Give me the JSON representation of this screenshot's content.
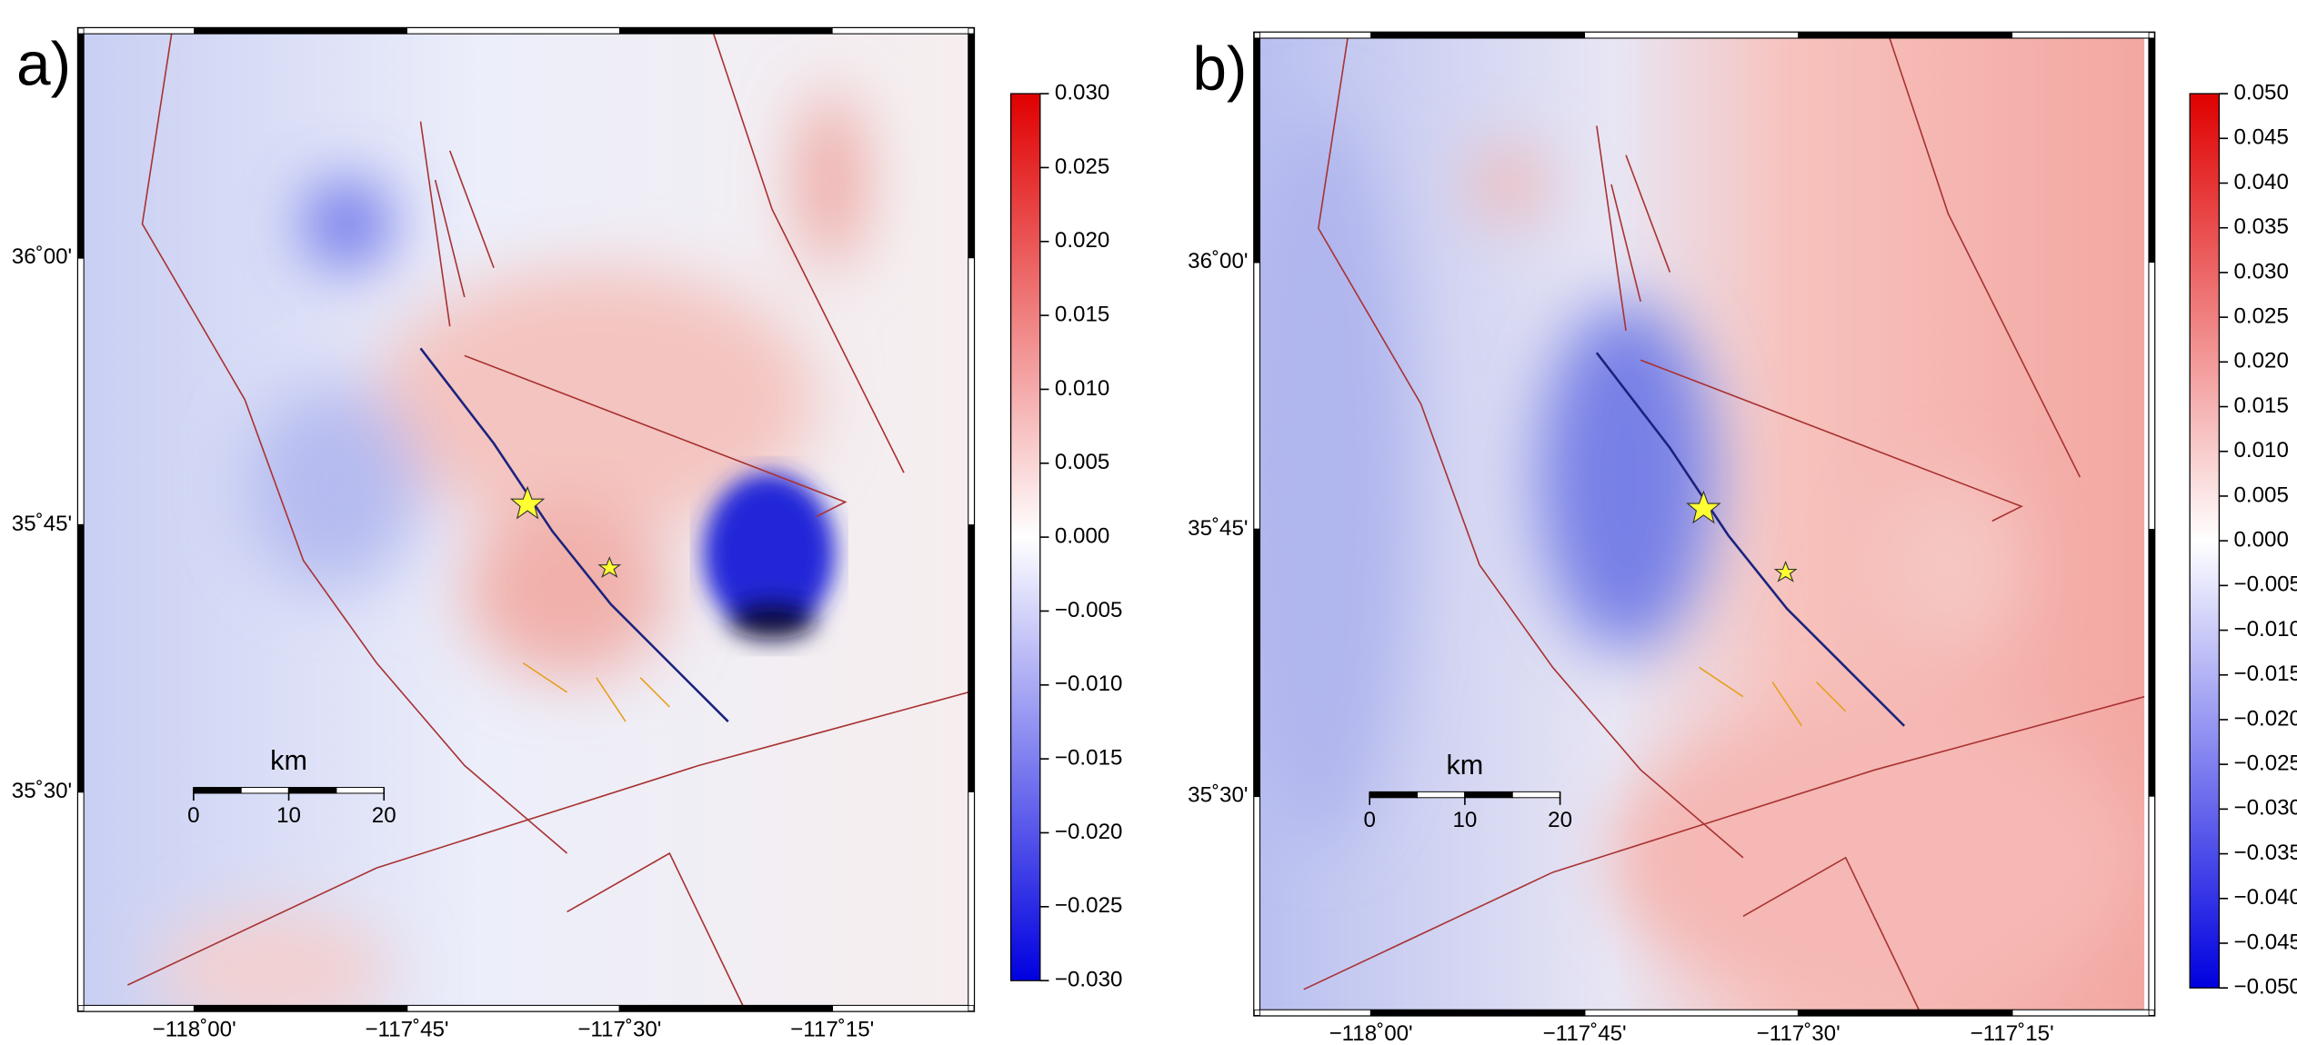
{
  "panels": [
    {
      "label": "a)",
      "lon_lim": [
        -118.13,
        -117.09
      ],
      "lat_lim": [
        35.3,
        36.21
      ],
      "lon_ticks": [
        {
          "value": -118,
          "label": "−118˚00'"
        },
        {
          "value": -117.75,
          "label": "−117˚45'"
        },
        {
          "value": -117.5,
          "label": "−117˚30'"
        },
        {
          "value": -117.25,
          "label": "−117˚15'"
        }
      ],
      "lat_ticks": [
        {
          "value": 36,
          "label": "36˚00'"
        },
        {
          "value": 35.75,
          "label": "35˚45'"
        },
        {
          "value": 35.5,
          "label": "35˚30'"
        }
      ],
      "colorbar": {
        "lim": [
          -0.03,
          0.03
        ],
        "ticks": [
          {
            "value": 0.03,
            "label": "0.030"
          },
          {
            "value": 0.025,
            "label": "0.025"
          },
          {
            "value": 0.02,
            "label": "0.020"
          },
          {
            "value": 0.015,
            "label": "0.015"
          },
          {
            "value": 0.01,
            "label": "0.010"
          },
          {
            "value": 0.005,
            "label": "0.005"
          },
          {
            "value": 0,
            "label": "0.000"
          },
          {
            "value": -0.005,
            "label": "−0.005"
          },
          {
            "value": -0.01,
            "label": "−0.010"
          },
          {
            "value": -0.015,
            "label": "−0.015"
          },
          {
            "value": -0.02,
            "label": "−0.020"
          },
          {
            "value": -0.025,
            "label": "−0.025"
          },
          {
            "value": -0.03,
            "label": "−0.030"
          }
        ]
      },
      "scalebar": {
        "title": "km",
        "ticks": [
          0,
          10,
          20
        ]
      }
    },
    {
      "label": "b)",
      "lon_lim": [
        -118.13,
        -117.09
      ],
      "lat_lim": [
        35.3,
        36.21
      ],
      "lon_ticks": [
        {
          "value": -118,
          "label": "−118˚00'"
        },
        {
          "value": -117.75,
          "label": "−117˚45'"
        },
        {
          "value": -117.5,
          "label": "−117˚30'"
        },
        {
          "value": -117.25,
          "label": "−117˚15'"
        }
      ],
      "lat_ticks": [
        {
          "value": 36,
          "label": "36˚00'"
        },
        {
          "value": 35.75,
          "label": "35˚45'"
        },
        {
          "value": 35.5,
          "label": "35˚30'"
        }
      ],
      "colorbar": {
        "lim": [
          -0.05,
          0.05
        ],
        "ticks": [
          {
            "value": 0.05,
            "label": "0.050"
          },
          {
            "value": 0.045,
            "label": "0.045"
          },
          {
            "value": 0.04,
            "label": "0.040"
          },
          {
            "value": 0.035,
            "label": "0.035"
          },
          {
            "value": 0.03,
            "label": "0.030"
          },
          {
            "value": 0.025,
            "label": "0.025"
          },
          {
            "value": 0.02,
            "label": "0.020"
          },
          {
            "value": 0.015,
            "label": "0.015"
          },
          {
            "value": 0.01,
            "label": "0.010"
          },
          {
            "value": 0.005,
            "label": "0.005"
          },
          {
            "value": 0,
            "label": "0.000"
          },
          {
            "value": -0.005,
            "label": "−0.005"
          },
          {
            "value": -0.01,
            "label": "−0.010"
          },
          {
            "value": -0.015,
            "label": "−0.015"
          },
          {
            "value": -0.02,
            "label": "−0.020"
          },
          {
            "value": -0.025,
            "label": "−0.025"
          },
          {
            "value": -0.03,
            "label": "−0.030"
          },
          {
            "value": -0.035,
            "label": "−0.035"
          },
          {
            "value": -0.04,
            "label": "−0.040"
          },
          {
            "value": -0.045,
            "label": "−0.045"
          },
          {
            "value": -0.05,
            "label": "−0.050"
          }
        ]
      },
      "scalebar": {
        "title": "km",
        "ticks": [
          0,
          10,
          20
        ]
      }
    }
  ]
}
